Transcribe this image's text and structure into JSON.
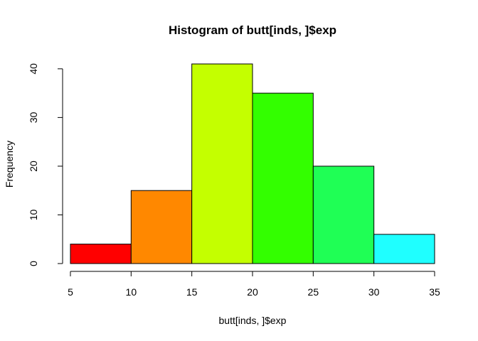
{
  "chart_data": {
    "type": "bar",
    "title": "Histogram of butt[inds, ]$exp",
    "xlabel": "butt[inds, ]$exp",
    "ylabel": "Frequency",
    "bins": [
      {
        "from": 5,
        "to": 10,
        "count": 4,
        "color": "#FF0000"
      },
      {
        "from": 10,
        "to": 15,
        "count": 15,
        "color": "#FF8800"
      },
      {
        "from": 15,
        "to": 20,
        "count": 41,
        "color": "#C4FF00"
      },
      {
        "from": 20,
        "to": 25,
        "count": 35,
        "color": "#33FF00"
      },
      {
        "from": 25,
        "to": 30,
        "count": 20,
        "color": "#1FFF55"
      },
      {
        "from": 30,
        "to": 35,
        "count": 6,
        "color": "#1FFFFF"
      }
    ],
    "xlim": [
      5,
      35
    ],
    "ylim": [
      0,
      41
    ],
    "x_ticks": [
      5,
      10,
      15,
      20,
      25,
      30,
      35
    ],
    "y_ticks": [
      0,
      10,
      20,
      30,
      40
    ],
    "grid": false,
    "legend": "none"
  }
}
